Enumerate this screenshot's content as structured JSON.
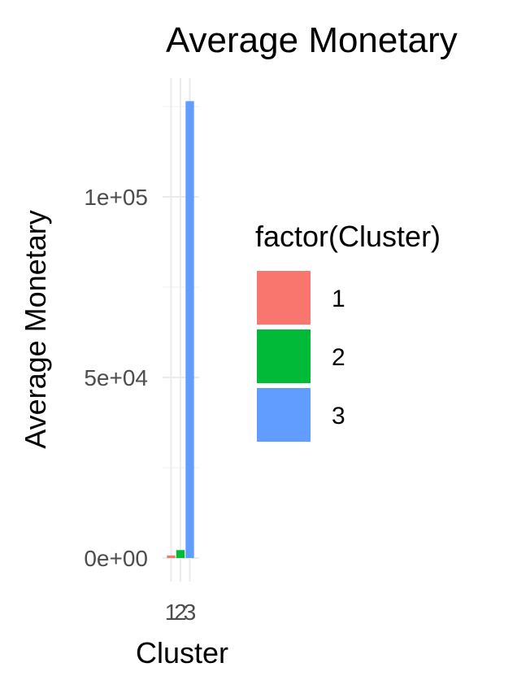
{
  "chart_data": {
    "type": "bar",
    "title": "Average Monetary",
    "xlabel": "Cluster",
    "ylabel": "Average Monetary",
    "categories": [
      "1",
      "2",
      "3"
    ],
    "values": [
      700,
      2200,
      126500
    ],
    "colors": [
      "#F8766D",
      "#00BA38",
      "#619CFF"
    ],
    "ylim": [
      -6000,
      133000
    ],
    "yticks": [
      0,
      50000,
      100000
    ],
    "ytick_labels": [
      "0e+00",
      "5e+04",
      "1e+05"
    ],
    "grid": true,
    "legend": {
      "title": "factor(Cluster)",
      "placement": "right",
      "entries": [
        "1",
        "2",
        "3"
      ]
    }
  }
}
